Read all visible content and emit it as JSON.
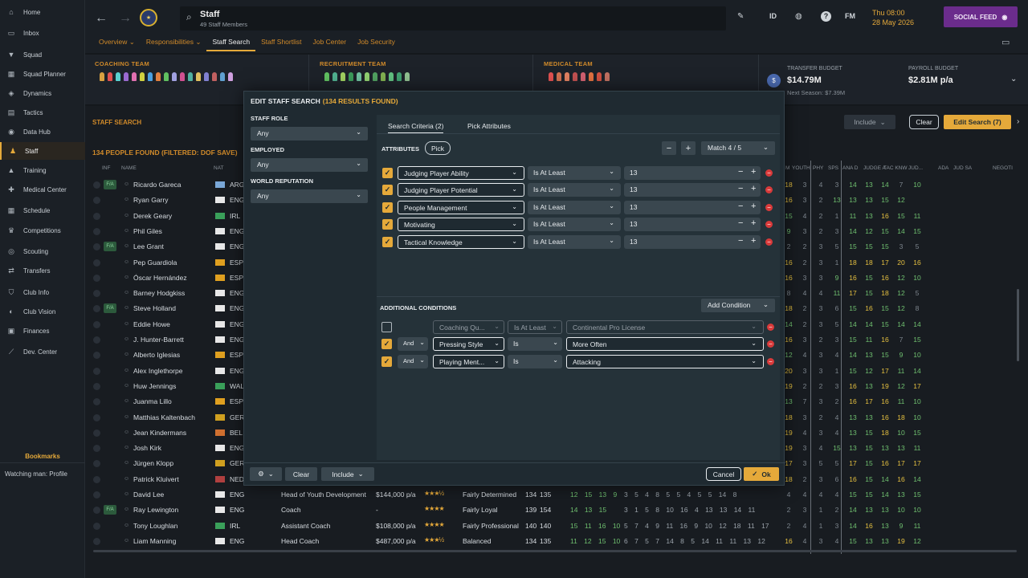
{
  "sidebar": {
    "items": [
      {
        "label": "Home",
        "icon": "home-icon",
        "glyph": "⌂"
      },
      {
        "label": "Inbox",
        "icon": "inbox-icon",
        "glyph": "▭"
      },
      {
        "label": "Squad",
        "icon": "shirt-icon",
        "glyph": "▼"
      },
      {
        "label": "Squad Planner",
        "icon": "planner-icon",
        "glyph": "▦"
      },
      {
        "label": "Dynamics",
        "icon": "dynamics-icon",
        "glyph": "◈"
      },
      {
        "label": "Tactics",
        "icon": "tactics-icon",
        "glyph": "▤"
      },
      {
        "label": "Data Hub",
        "icon": "data-hub-icon",
        "glyph": "◉"
      },
      {
        "label": "Staff",
        "icon": "staff-icon",
        "glyph": "♟"
      },
      {
        "label": "Training",
        "icon": "training-icon",
        "glyph": "▲"
      },
      {
        "label": "Medical Center",
        "icon": "medical-icon",
        "glyph": "✚"
      },
      {
        "label": "Schedule",
        "icon": "calendar-icon",
        "glyph": "▦"
      },
      {
        "label": "Competitions",
        "icon": "trophy-icon",
        "glyph": "♛"
      },
      {
        "label": "Scouting",
        "icon": "scouting-icon",
        "glyph": "◎"
      },
      {
        "label": "Transfers",
        "icon": "transfers-icon",
        "glyph": "⇄"
      },
      {
        "label": "Club Info",
        "icon": "shield-icon",
        "glyph": "⛉"
      },
      {
        "label": "Club Vision",
        "icon": "vision-icon",
        "glyph": "◐"
      },
      {
        "label": "Finances",
        "icon": "finances-icon",
        "glyph": "▣"
      },
      {
        "label": "Dev. Center",
        "icon": "dev-center-icon",
        "glyph": "⟋"
      }
    ],
    "bookmarks_title": "Bookmarks",
    "bookmark_item": "Watching man: Profile"
  },
  "header": {
    "title": "Staff",
    "subtitle": "49 Staff Members",
    "id_label": "ID",
    "fm_label": "FM",
    "date_line1": "Thu 08:00",
    "date_line2": "28 May 2026",
    "social_feed": "SOCIAL FEED",
    "tabs": [
      "Overview",
      "Responsibilities",
      "Staff Search",
      "Staff Shortlist",
      "Job Center",
      "Job Security"
    ]
  },
  "teams": [
    {
      "title": "COACHING TEAM",
      "count": 17
    },
    {
      "title": "RECRUITMENT TEAM",
      "count": 11
    },
    {
      "title": "MEDICAL TEAM",
      "count": 8
    }
  ],
  "budget": {
    "transfer_label": "TRANSFER BUDGET",
    "transfer_value": "$14.79M",
    "next_season": "Next Season: $7.39M",
    "payroll_label": "PAYROLL BUDGET",
    "payroll_value": "$2.81M p/a"
  },
  "search": {
    "title": "STAFF SEARCH",
    "found": "134 PEOPLE FOUND (FILTERED: DOF SAVE)",
    "include_label": "Include",
    "clear_label": "Clear",
    "edit_label": "Edit Search (7)"
  },
  "columns": {
    "inf": "INF",
    "name": "NAME",
    "nat": "NAT",
    "ratings": [
      "M",
      "YOUTH",
      "PHY",
      "SPS",
      "ANA D",
      "JUDGE A",
      "TAC KNW",
      "JUD...",
      "ADA",
      "JUD SA",
      "",
      "NEGOTI"
    ]
  },
  "rows": [
    {
      "name": "Ricardo Gareca",
      "fa": "F/A",
      "nat": "ARG",
      "flag": "#7aa8d8",
      "ratings": [
        "",
        "18",
        "3",
        "4",
        "3",
        "14",
        "13",
        "14",
        "7",
        "10"
      ]
    },
    {
      "name": "Ryan Garry",
      "fa": "",
      "nat": "ENG",
      "flag": "#e8e8e8",
      "ratings": [
        "",
        "16",
        "3",
        "2",
        "13",
        "13",
        "13",
        "15",
        "12",
        ""
      ]
    },
    {
      "name": "Derek Geary",
      "fa": "",
      "nat": "IRL",
      "flag": "#3aa05a",
      "ratings": [
        "",
        "15",
        "4",
        "2",
        "1",
        "11",
        "13",
        "16",
        "15",
        "11"
      ]
    },
    {
      "name": "Phil Giles",
      "fa": "",
      "nat": "ENG",
      "flag": "#e8e8e8",
      "ratings": [
        "",
        "9",
        "3",
        "2",
        "3",
        "14",
        "12",
        "15",
        "14",
        "15"
      ]
    },
    {
      "name": "Lee Grant",
      "fa": "F/A",
      "nat": "ENG",
      "flag": "#e8e8e8",
      "ratings": [
        "",
        "2",
        "2",
        "3",
        "5",
        "15",
        "15",
        "15",
        "3",
        "5"
      ]
    },
    {
      "name": "Pep Guardiola",
      "fa": "",
      "nat": "ESP",
      "flag": "#e0a020",
      "ratings": [
        "",
        "16",
        "2",
        "3",
        "1",
        "18",
        "18",
        "17",
        "20",
        "16"
      ]
    },
    {
      "name": "Óscar Hernández",
      "fa": "",
      "nat": "ESP",
      "flag": "#e0a020",
      "ratings": [
        "",
        "16",
        "3",
        "3",
        "9",
        "16",
        "15",
        "16",
        "12",
        "10"
      ]
    },
    {
      "name": "Barney Hodgkiss",
      "fa": "",
      "nat": "ENG",
      "flag": "#e8e8e8",
      "ratings": [
        "",
        "8",
        "4",
        "4",
        "11",
        "17",
        "15",
        "18",
        "12",
        "5"
      ]
    },
    {
      "name": "Steve Holland",
      "fa": "F/A",
      "nat": "ENG",
      "flag": "#e8e8e8",
      "ratings": [
        "",
        "18",
        "2",
        "3",
        "6",
        "15",
        "16",
        "15",
        "12",
        "8"
      ]
    },
    {
      "name": "Eddie Howe",
      "fa": "",
      "nat": "ENG",
      "flag": "#e8e8e8",
      "ratings": [
        "",
        "14",
        "2",
        "3",
        "5",
        "14",
        "14",
        "15",
        "14",
        "14"
      ]
    },
    {
      "name": "J. Hunter-Barrett",
      "fa": "",
      "nat": "ENG",
      "flag": "#e8e8e8",
      "ratings": [
        "",
        "16",
        "3",
        "2",
        "3",
        "15",
        "11",
        "16",
        "7",
        "15"
      ]
    },
    {
      "name": "Alberto Iglesias",
      "fa": "",
      "nat": "ESP",
      "flag": "#e0a020",
      "ratings": [
        "",
        "12",
        "4",
        "3",
        "4",
        "14",
        "13",
        "15",
        "9",
        "10"
      ]
    },
    {
      "name": "Alex Inglethorpe",
      "fa": "",
      "nat": "ENG",
      "flag": "#e8e8e8",
      "ratings": [
        "",
        "20",
        "3",
        "3",
        "1",
        "15",
        "12",
        "17",
        "11",
        "14"
      ]
    },
    {
      "name": "Huw Jennings",
      "fa": "",
      "nat": "WAL",
      "flag": "#3aa05a",
      "ratings": [
        "",
        "19",
        "2",
        "2",
        "3",
        "16",
        "13",
        "19",
        "12",
        "17"
      ]
    },
    {
      "name": "Juanma Lillo",
      "fa": "",
      "nat": "ESP",
      "flag": "#e0a020",
      "ratings": [
        "",
        "13",
        "7",
        "3",
        "2",
        "16",
        "17",
        "16",
        "11",
        "10"
      ]
    },
    {
      "name": "Matthias Kaltenbach",
      "fa": "",
      "nat": "GER",
      "flag": "#d0a020",
      "ratings": [
        "",
        "18",
        "3",
        "2",
        "4",
        "13",
        "13",
        "16",
        "18",
        "10"
      ]
    },
    {
      "name": "Jean Kindermans",
      "fa": "",
      "nat": "BEL",
      "flag": "#d07030",
      "ratings": [
        "",
        "19",
        "4",
        "3",
        "4",
        "13",
        "15",
        "18",
        "10",
        "15"
      ]
    },
    {
      "name": "Josh Kirk",
      "fa": "",
      "nat": "ENG",
      "flag": "#e8e8e8",
      "ratings": [
        "",
        "19",
        "3",
        "4",
        "15",
        "13",
        "15",
        "13",
        "13",
        "11"
      ]
    },
    {
      "name": "Jürgen Klopp",
      "fa": "",
      "nat": "GER",
      "flag": "#d0a020",
      "ratings": [
        "",
        "17",
        "3",
        "5",
        "5",
        "17",
        "15",
        "16",
        "17",
        "17"
      ]
    },
    {
      "name": "Patrick Kluivert",
      "fa": "",
      "nat": "NED",
      "flag": "#b04040",
      "ratings": [
        "",
        "18",
        "2",
        "3",
        "6",
        "16",
        "15",
        "14",
        "16",
        "14"
      ]
    },
    {
      "name": "David Lee",
      "fa": "",
      "nat": "ENG",
      "flag": "#e8e8e8",
      "role": "Head of Youth Development",
      "wage": "$144,000 p/a",
      "stars": "★★★½",
      "pers": "Fairly Determined",
      "ca": "134",
      "pa": "135",
      "attrs": "12 15 13 9",
      "ext": "3 5 4 8 5 5 4 5 5 14 8",
      "ratings": [
        "",
        "4",
        "4",
        "4",
        "4",
        "15",
        "15",
        "14",
        "13",
        "15"
      ]
    },
    {
      "name": "Ray Lewington",
      "fa": "F/A",
      "nat": "ENG",
      "flag": "#e8e8e8",
      "role": "Coach",
      "wage": "-",
      "stars": "★★★★",
      "pers": "Fairly Loyal",
      "ca": "139",
      "pa": "154",
      "attrs": "14 13 15",
      "ext": "3 1 5 8 10 16 4 13 13 14 11",
      "ratings": [
        "",
        "2",
        "3",
        "1",
        "2",
        "14",
        "13",
        "13",
        "10",
        "10"
      ]
    },
    {
      "name": "Tony Loughlan",
      "fa": "",
      "nat": "IRL",
      "flag": "#3aa05a",
      "role": "Assistant Coach",
      "wage": "$108,000 p/a",
      "stars": "★★★★",
      "pers": "Fairly Professional",
      "ca": "140",
      "pa": "140",
      "attrs": "15 11 16 10",
      "ext": "5 7 4 9 11 16 9 10 12 18 11 17",
      "ratings": [
        "",
        "2",
        "4",
        "1",
        "3",
        "14",
        "16",
        "13",
        "9",
        "11"
      ]
    },
    {
      "name": "Liam Manning",
      "fa": "",
      "nat": "ENG",
      "flag": "#e8e8e8",
      "role": "Head Coach",
      "wage": "$487,000 p/a",
      "stars": "★★★½",
      "pers": "Balanced",
      "ca": "134",
      "pa": "135",
      "attrs": "11 12 15 10",
      "ext": "6 7 5 7 14 8 5 14 11 11 13 12",
      "ratings": [
        "",
        "16",
        "4",
        "3",
        "4",
        "15",
        "13",
        "13",
        "19",
        "12"
      ]
    }
  ],
  "dialog": {
    "title": "EDIT STAFF SEARCH",
    "count": "(134 RESULTS FOUND)",
    "staff_role_label": "STAFF ROLE",
    "staff_role_value": "Any",
    "employed_label": "EMPLOYED",
    "employed_value": "Any",
    "world_rep_label": "WORLD REPUTATION",
    "world_rep_value": "Any",
    "tab_criteria": "Search Criteria (2)",
    "tab_pick": "Pick Attributes",
    "attributes_label": "ATTRIBUTES",
    "pick_label": "Pick",
    "match_label": "Match 4 / 5",
    "criteria": [
      {
        "attr": "Judging Player Ability",
        "op": "Is At Least",
        "val": "13"
      },
      {
        "attr": "Judging Player Potential",
        "op": "Is At Least",
        "val": "13"
      },
      {
        "attr": "People Management",
        "op": "Is At Least",
        "val": "13"
      },
      {
        "attr": "Motivating",
        "op": "Is At Least",
        "val": "13"
      },
      {
        "attr": "Tactical Knowledge",
        "op": "Is At Least",
        "val": "13"
      }
    ],
    "additional_label": "ADDITIONAL CONDITIONS",
    "add_condition_label": "Add Condition",
    "conditions": [
      {
        "checked": false,
        "join": "",
        "field": "Coaching Qu...",
        "op": "Is At Least",
        "val": "Continental Pro License"
      },
      {
        "checked": true,
        "join": "And",
        "field": "Pressing Style",
        "op": "Is",
        "val": "More Often"
      },
      {
        "checked": true,
        "join": "And",
        "field": "Playing Ment...",
        "op": "Is",
        "val": "Attacking"
      }
    ],
    "footer": {
      "clear": "Clear",
      "include": "Include",
      "cancel": "Cancel",
      "ok": "Ok"
    }
  }
}
